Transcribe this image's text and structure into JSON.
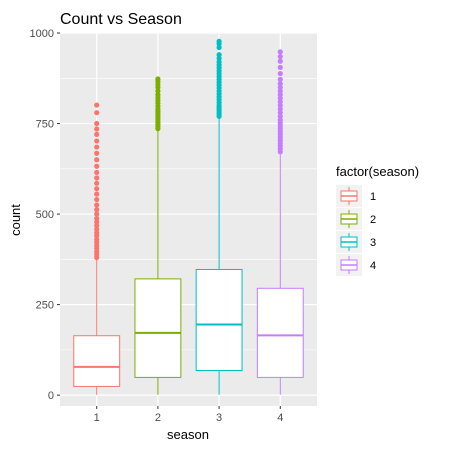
{
  "chart_data": {
    "type": "boxplot",
    "title": "Count vs Season",
    "xlabel": "season",
    "ylabel": "count",
    "ylim": [
      -30,
      1000
    ],
    "y_ticks": [
      0,
      250,
      500,
      750,
      1000
    ],
    "categories": [
      "1",
      "2",
      "3",
      "4"
    ],
    "legend": {
      "title": "factor(season)",
      "placement": "right",
      "entries": [
        "1",
        "2",
        "3",
        "4"
      ]
    },
    "grid": true,
    "colors": [
      "#F8766D",
      "#7CAE00",
      "#00BFC4",
      "#C77CFF"
    ],
    "panel_background": "#EBEBEB",
    "series": [
      {
        "category": "1",
        "min": 1,
        "q1": 24,
        "median": 78,
        "q3": 164,
        "max": 375,
        "outliers": [
          380,
          388,
          396,
          405,
          413,
          422,
          430,
          440,
          448,
          458,
          468,
          478,
          488,
          500,
          512,
          525,
          540,
          555,
          570,
          585,
          600,
          615,
          632,
          650,
          668,
          685,
          702,
          720,
          735,
          750,
          780,
          801
        ]
      },
      {
        "category": "2",
        "min": 1,
        "q1": 49,
        "median": 172,
        "q3": 321,
        "max": 730,
        "outliers": [
          736,
          742,
          748,
          754,
          760,
          766,
          772,
          778,
          784,
          790,
          798,
          806,
          814,
          822,
          830,
          840,
          850,
          858,
          866,
          873
        ]
      },
      {
        "category": "3",
        "min": 1,
        "q1": 68,
        "median": 195,
        "q3": 347,
        "max": 765,
        "outliers": [
          770,
          776,
          782,
          788,
          794,
          800,
          808,
          816,
          824,
          832,
          840,
          848,
          856,
          864,
          872,
          880,
          888,
          896,
          904,
          912,
          920,
          930,
          940,
          960,
          970,
          977
        ]
      },
      {
        "category": "4",
        "min": 1,
        "q1": 49,
        "median": 165,
        "q3": 295,
        "max": 665,
        "outliers": [
          672,
          680,
          688,
          696,
          704,
          712,
          720,
          728,
          736,
          744,
          752,
          760,
          770,
          780,
          790,
          800,
          810,
          820,
          830,
          840,
          850,
          860,
          872,
          888,
          905,
          922,
          935,
          948
        ]
      }
    ]
  }
}
